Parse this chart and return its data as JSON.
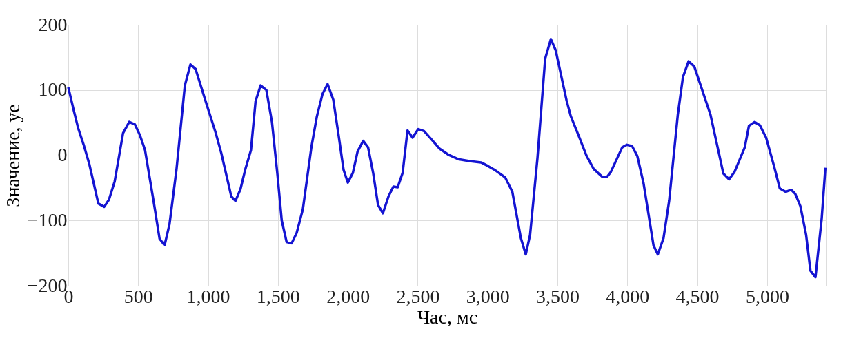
{
  "chart_data": {
    "type": "line",
    "xlabel": "Час, мс",
    "ylabel": "Значение, уе",
    "x": [
      0,
      40,
      70,
      110,
      151,
      215,
      257,
      291,
      332,
      392,
      436,
      477,
      512,
      549,
      613,
      653,
      689,
      724,
      774,
      834,
      874,
      911,
      991,
      1055,
      1095,
      1166,
      1196,
      1232,
      1266,
      1307,
      1340,
      1376,
      1417,
      1457,
      1497,
      1527,
      1562,
      1598,
      1634,
      1678,
      1739,
      1778,
      1819,
      1855,
      1896,
      1935,
      1969,
      2000,
      2036,
      2070,
      2110,
      2145,
      2181,
      2216,
      2251,
      2291,
      2326,
      2357,
      2392,
      2427,
      2463,
      2504,
      2545,
      2596,
      2657,
      2718,
      2790,
      2871,
      2953,
      2998,
      3055,
      3126,
      3177,
      3238,
      3273,
      3304,
      3357,
      3412,
      3453,
      3487,
      3565,
      3595,
      3657,
      3708,
      3759,
      3820,
      3855,
      3881,
      3963,
      3997,
      4034,
      4071,
      4116,
      4187,
      4218,
      4259,
      4299,
      4361,
      4398,
      4438,
      4479,
      4595,
      4687,
      4728,
      4768,
      4840,
      4870,
      4911,
      4948,
      4993,
      5050,
      5091,
      5132,
      5173,
      5201,
      5238,
      5279,
      5310,
      5346,
      5391,
      5417
    ],
    "series": [
      {
        "color": "#1414d2",
        "values": [
          104,
          68,
          42,
          16,
          -14,
          -74,
          -79,
          -68,
          -40,
          34,
          51,
          47,
          31,
          8,
          -74,
          -128,
          -138,
          -106,
          -22,
          107,
          139,
          132,
          77,
          34,
          3,
          -63,
          -70,
          -52,
          -22,
          8,
          83,
          107,
          100,
          51,
          -31,
          -100,
          -133,
          -135,
          -119,
          -83,
          12,
          59,
          94,
          109,
          85,
          29,
          -22,
          -42,
          -27,
          6,
          22,
          12,
          -27,
          -76,
          -89,
          -63,
          -48,
          -49,
          -27,
          38,
          27,
          40,
          37,
          25,
          10,
          1,
          -6,
          -9,
          -11,
          -16,
          -23,
          -34,
          -56,
          -127,
          -152,
          -122,
          -4,
          148,
          178,
          161,
          84,
          60,
          27,
          -1,
          -21,
          -33,
          -33,
          -26,
          12,
          16,
          14,
          -1,
          -43,
          -138,
          -152,
          -127,
          -70,
          62,
          120,
          144,
          136,
          62,
          -28,
          -37,
          -25,
          12,
          45,
          51,
          46,
          27,
          -17,
          -51,
          -56,
          -53,
          -59,
          -78,
          -122,
          -177,
          -187,
          -96,
          -19
        ]
      }
    ],
    "xlim": [
      0,
      5420
    ],
    "ylim": [
      -200,
      200
    ],
    "xticks": [
      0,
      500,
      {
        "value": 1000,
        "label": "1,000"
      },
      {
        "value": 1500,
        "label": "1,500"
      },
      {
        "value": 2000,
        "label": "2,000"
      },
      {
        "value": 2500,
        "label": "2,500"
      },
      {
        "value": 3000,
        "label": "3,000"
      },
      {
        "value": 3500,
        "label": "3,500"
      },
      {
        "value": 4000,
        "label": "4,000"
      },
      {
        "value": 4500,
        "label": "4,500"
      },
      {
        "value": 5000,
        "label": "5,000"
      }
    ],
    "yticks": [
      -200,
      -100,
      0,
      100,
      200
    ],
    "grid": true,
    "marker": "none",
    "line_style": "solid",
    "legend": false
  }
}
